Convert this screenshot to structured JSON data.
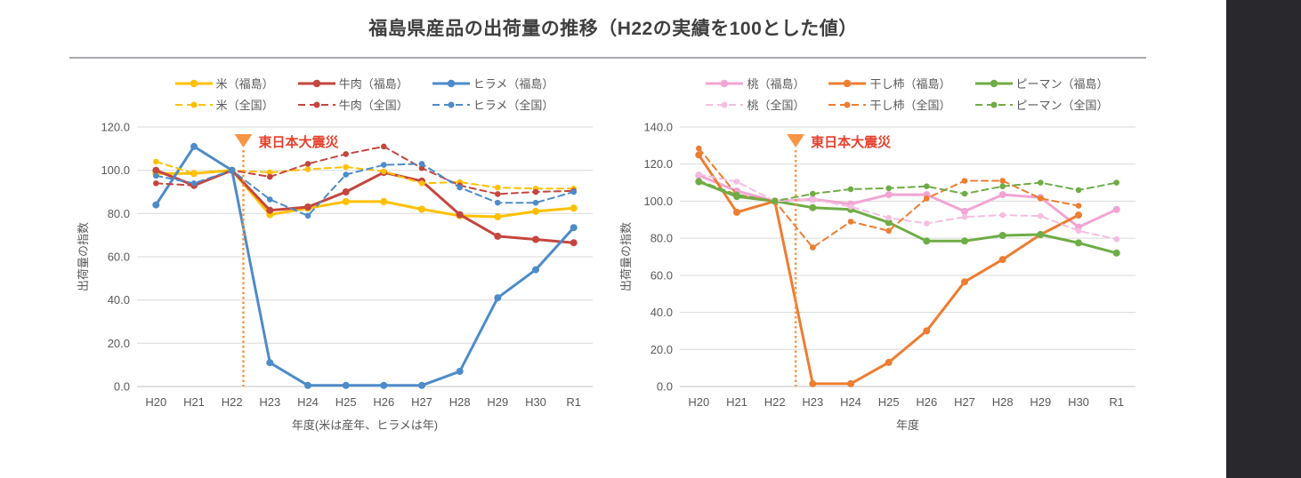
{
  "page": {
    "title": "福島県産品の出荷量の推移（H22の実績を100とした値）",
    "side_band_color": "#28282d",
    "grid_color": "#d9d9d9",
    "axis_color": "#bfbfbf",
    "text_color": "#595959"
  },
  "chart_data": [
    {
      "id": "left",
      "type": "line",
      "categories": [
        "H20",
        "H21",
        "H22",
        "H23",
        "H24",
        "H25",
        "H26",
        "H27",
        "H28",
        "H29",
        "H30",
        "R1"
      ],
      "xlabel": "年度(米は産年、ヒラメは年)",
      "ylabel": "出荷量の指数",
      "ylim": [
        0,
        120
      ],
      "ytick_step": 20,
      "grid": true,
      "legend_position": "top",
      "annotation": {
        "text": "東日本大震災",
        "x_index": 2.3,
        "text_color": "#e8402c",
        "marker_color": "#f79646"
      },
      "series": [
        {
          "name": "米（福島）",
          "color": "#FFC000",
          "dashed": false,
          "values": [
            98.5,
            98.5,
            100,
            79.5,
            82.5,
            85.5,
            85.5,
            82,
            79,
            78.5,
            81,
            82.5
          ]
        },
        {
          "name": "牛肉（福島）",
          "color": "#C4463E",
          "dashed": false,
          "values": [
            100,
            93,
            100,
            81.5,
            83,
            90,
            99,
            95,
            79.5,
            69.5,
            68,
            66.5
          ]
        },
        {
          "name": "ヒラメ（福島）",
          "color": "#4D8BC9",
          "dashed": false,
          "values": [
            84,
            111,
            100,
            11,
            0.5,
            0.5,
            0.5,
            0.5,
            7,
            41,
            54,
            73.5
          ]
        },
        {
          "name": "米（全国）",
          "color": "#FFC000",
          "dashed": true,
          "values": [
            104,
            98.5,
            100,
            99,
            100.5,
            101.5,
            99.5,
            94,
            94.5,
            92,
            91.5,
            91.5
          ]
        },
        {
          "name": "牛肉（全国）",
          "color": "#C4463E",
          "dashed": true,
          "values": [
            94,
            93,
            100,
            97,
            103,
            107.5,
            111,
            101,
            93,
            89,
            90,
            90.5
          ]
        },
        {
          "name": "ヒラメ（全国）",
          "color": "#4D8BC9",
          "dashed": true,
          "values": [
            97.5,
            94,
            100,
            86.5,
            79,
            98,
            102.5,
            103,
            92,
            85,
            85,
            90
          ]
        }
      ]
    },
    {
      "id": "right",
      "type": "line",
      "categories": [
        "H20",
        "H21",
        "H22",
        "H23",
        "H24",
        "H25",
        "H26",
        "H27",
        "H28",
        "H29",
        "H30",
        "R1"
      ],
      "xlabel": "年度",
      "ylabel": "出荷量の指数",
      "ylim": [
        0,
        140
      ],
      "ytick_step": 20,
      "grid": true,
      "legend_position": "top",
      "annotation": {
        "text": "東日本大震災",
        "x_index": 2.55,
        "text_color": "#e8402c",
        "marker_color": "#f79646"
      },
      "series": [
        {
          "name": "桃（福島）",
          "color": "#F2A5D3",
          "dashed": false,
          "values": [
            114,
            105.5,
            100,
            101,
            98.5,
            103.5,
            103.5,
            94.5,
            103.5,
            102,
            86,
            95.5
          ]
        },
        {
          "name": "干し柿（福島）",
          "color": "#ED7D31",
          "dashed": false,
          "values": [
            125,
            94,
            100,
            1.5,
            1.5,
            13,
            30,
            56.5,
            68.5,
            82,
            92.5,
            null
          ]
        },
        {
          "name": "ピーマン（福島）",
          "color": "#6FAC46",
          "dashed": false,
          "values": [
            110.5,
            102.5,
            100,
            96.5,
            95.5,
            88.5,
            78.5,
            78.5,
            81.5,
            82,
            77.5,
            72
          ]
        },
        {
          "name": "桃（全国）",
          "color": "#F5BEE0",
          "dashed": true,
          "values": [
            114.5,
            110.5,
            100,
            101,
            97,
            91,
            88,
            91.5,
            92.5,
            92,
            84,
            79.5
          ]
        },
        {
          "name": "干し柿（全国）",
          "color": "#ED7D31",
          "dashed": true,
          "values": [
            128.5,
            103.5,
            100,
            75,
            89,
            84,
            101.5,
            111,
            111,
            101.5,
            97.5,
            null
          ]
        },
        {
          "name": "ピーマン（全国）",
          "color": "#6FAC46",
          "dashed": true,
          "values": [
            111,
            103.5,
            100,
            104,
            106.5,
            107,
            108,
            104,
            108,
            110,
            106,
            110
          ]
        }
      ]
    }
  ]
}
